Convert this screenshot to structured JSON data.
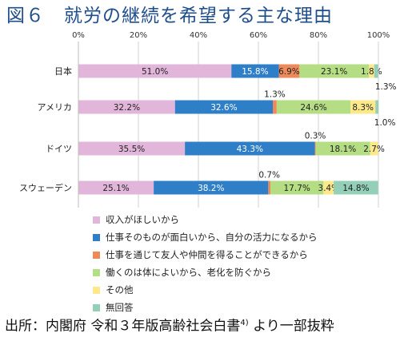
{
  "title": "図６　就労の継続を希望する主な理由",
  "footer": {
    "text": "出所：内閣府 令和３年版高齢社会白書",
    "note": "4)",
    "suffix": " より一部抜粋"
  },
  "chart_data": {
    "type": "bar",
    "orientation": "horizontal",
    "stacked": true,
    "title": "図６　就労の継続を希望する主な理由",
    "xlim": [
      0,
      100
    ],
    "x_ticks": [
      "0%",
      "20%",
      "40%",
      "60%",
      "80%",
      "100%"
    ],
    "x_tick_values": [
      0,
      20,
      40,
      60,
      80,
      100
    ],
    "grid": true,
    "legend_position": "bottom",
    "categories": [
      "日本",
      "アメリカ",
      "ドイツ",
      "スウェーデン"
    ],
    "series": [
      {
        "name": "収入がほしいから",
        "color": "#e2b6da",
        "values": [
          51.0,
          32.2,
          35.5,
          25.1
        ]
      },
      {
        "name": "仕事そのものが面白いから、自分の活力になるから",
        "color": "#2f7fc8",
        "values": [
          15.8,
          32.6,
          43.3,
          38.2
        ]
      },
      {
        "name": "仕事を通じて友人や仲間を得ることができるから",
        "color": "#ee8a5a",
        "values": [
          6.9,
          1.3,
          0.3,
          0.7
        ]
      },
      {
        "name": "働くのは体によいから、老化を防ぐから",
        "color": "#b5dd84",
        "values": [
          23.1,
          24.6,
          18.1,
          17.7
        ]
      },
      {
        "name": "その他",
        "color": "#fde98a",
        "values": [
          1.8,
          8.3,
          2.7,
          3.4
        ]
      },
      {
        "name": "無回答",
        "color": "#94cfb8",
        "values": [
          1.3,
          1.0,
          0.0,
          14.8
        ]
      }
    ],
    "labels": [
      [
        "51.0%",
        "15.8%",
        "6.9%",
        "23.1%",
        "1.8%",
        "1.3%"
      ],
      [
        "32.2%",
        "32.6%",
        "1.3%",
        "24.6%",
        "8.3%",
        "1.0%"
      ],
      [
        "35.5%",
        "43.3%",
        "0.3%",
        "18.1%",
        "2.7%",
        ""
      ],
      [
        "25.1%",
        "38.2%",
        "0.7%",
        "17.7%",
        "3.4%",
        "14.8%"
      ]
    ]
  }
}
